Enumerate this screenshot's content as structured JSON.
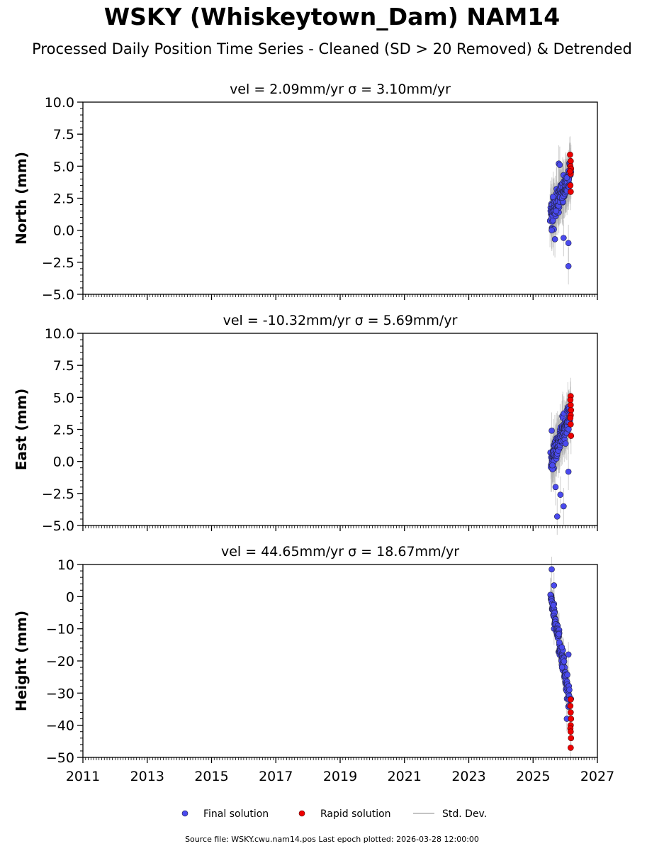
{
  "title": "WSKY (Whiskeytown_Dam) NAM14",
  "subtitle": "Processed Daily Position Time Series - Cleaned (SD > 20 Removed) & Detrended",
  "source_note": "Source file: WSKY.cwu.nam14.pos  Last epoch plotted: 2026-03-28 12:00:00",
  "legend": {
    "final": "Final solution",
    "rapid": "Rapid solution",
    "std": "Std. Dev.",
    "placement": "bottom-center"
  },
  "colors": {
    "final": "#4a4aee",
    "rapid": "#ee0000",
    "std": "#b0b0b0",
    "axis": "#000000"
  },
  "chart_data": [
    {
      "type": "scatter",
      "title": "vel = 2.09mm/yr   σ = 3.10mm/yr",
      "ylabel": "North (mm)",
      "xlim": [
        2011,
        2027
      ],
      "ylim": [
        -5,
        10
      ],
      "yticks": [
        -5,
        -2.5,
        0,
        2.5,
        5,
        7.5,
        10
      ],
      "ytick_labels": [
        "−5.0",
        "−2.5",
        "0.0",
        "2.5",
        "5.0",
        "7.5",
        "10.0"
      ],
      "xticks": [
        2011,
        2013,
        2015,
        2017,
        2019,
        2021,
        2023,
        2025,
        2027
      ],
      "xtick_labels": [],
      "trend": {
        "start": [
          2025.55,
          1.0
        ],
        "end": [
          2026.15,
          4.4
        ],
        "spread": 1.1
      },
      "series": [
        {
          "name": "Final solution",
          "x": [
            2025.58,
            2025.62,
            2025.68,
            2025.72,
            2025.8,
            2025.83,
            2025.95,
            2026.05,
            2026.1
          ],
          "y": [
            0.0,
            2.6,
            -0.7,
            1.5,
            5.2,
            5.1,
            -0.6,
            4.1,
            -1.0
          ]
        },
        {
          "name": "Rapid solution",
          "x": [
            2026.15,
            2026.17,
            2026.16,
            2026.18,
            2026.17,
            2026.16,
            2026.17,
            2026.15
          ],
          "y": [
            5.9,
            5.4,
            5.0,
            4.8,
            4.4,
            3.5,
            3.0,
            4.6
          ]
        },
        {
          "name": "Final solution (outlier)",
          "x": [
            2026.1
          ],
          "y": [
            -2.8
          ]
        }
      ]
    },
    {
      "type": "scatter",
      "title": "vel = -10.32mm/yr   σ = 5.69mm/yr",
      "ylabel": "East (mm)",
      "xlim": [
        2011,
        2027
      ],
      "ylim": [
        -5,
        10
      ],
      "yticks": [
        -5,
        -2.5,
        0,
        2.5,
        5,
        7.5,
        10
      ],
      "ytick_labels": [
        "−5.0",
        "−2.5",
        "0.0",
        "2.5",
        "5.0",
        "7.5",
        "10.0"
      ],
      "xticks": [
        2011,
        2013,
        2015,
        2017,
        2019,
        2021,
        2023,
        2025,
        2027
      ],
      "xtick_labels": [],
      "trend": {
        "start": [
          2025.55,
          0.0
        ],
        "end": [
          2026.15,
          3.6
        ],
        "spread": 1.1
      },
      "series": [
        {
          "name": "Final solution",
          "x": [
            2025.58,
            2025.6,
            2025.7,
            2025.75,
            2025.85,
            2025.95,
            2026.1
          ],
          "y": [
            2.4,
            -0.3,
            -2.0,
            -4.3,
            -2.6,
            -3.5,
            -0.8
          ]
        },
        {
          "name": "Rapid solution",
          "x": [
            2026.17,
            2026.16,
            2026.17,
            2026.18,
            2026.17,
            2026.16,
            2026.17,
            2026.18
          ],
          "y": [
            5.1,
            4.8,
            4.4,
            4.0,
            3.6,
            3.4,
            2.9,
            2.0
          ]
        }
      ]
    },
    {
      "type": "scatter",
      "title": "vel = 44.65mm/yr   σ = 18.67mm/yr",
      "ylabel": "Height (mm)",
      "xlim": [
        2011,
        2027
      ],
      "ylim": [
        -50,
        10
      ],
      "yticks": [
        -50,
        -40,
        -30,
        -20,
        -10,
        0,
        10
      ],
      "ytick_labels": [
        "−50",
        "−40",
        "−30",
        "−20",
        "−10",
        "0",
        "10"
      ],
      "xticks": [
        2011,
        2013,
        2015,
        2017,
        2019,
        2021,
        2023,
        2025,
        2027
      ],
      "xtick_labels": [
        "2011",
        "2013",
        "2015",
        "2017",
        "2019",
        "2021",
        "2023",
        "2025",
        "2027"
      ],
      "trend": {
        "start": [
          2025.55,
          0.0
        ],
        "end": [
          2026.15,
          -33.0
        ],
        "spread": 3.0
      },
      "series": [
        {
          "name": "Final solution",
          "x": [
            2025.58,
            2025.65,
            2025.9,
            2026.05,
            2026.1
          ],
          "y": [
            8.5,
            3.5,
            -22.0,
            -38.0,
            -18.0
          ]
        },
        {
          "name": "Rapid solution",
          "x": [
            2026.17,
            2026.16,
            2026.17,
            2026.18,
            2026.17,
            2026.16,
            2026.17,
            2026.18,
            2026.17
          ],
          "y": [
            -32.0,
            -34.0,
            -36.0,
            -38.0,
            -40.0,
            -41.0,
            -42.0,
            -44.0,
            -47.0
          ]
        }
      ]
    }
  ]
}
